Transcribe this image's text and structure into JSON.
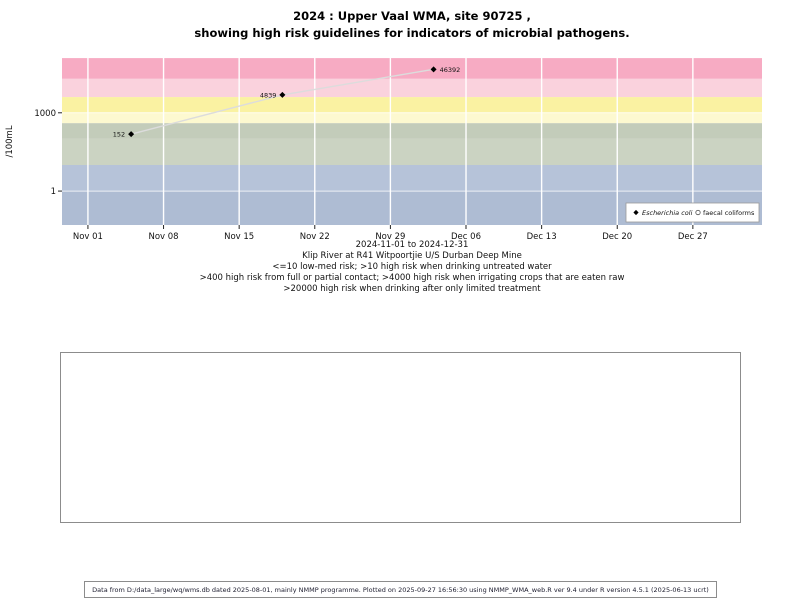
{
  "title": {
    "line1": "2024 : Upper Vaal WMA, site 90725 ,",
    "line2": "showing high risk guidelines for indicators of microbial pathogens."
  },
  "chart_data": {
    "type": "scatter",
    "title": "2024 : Upper Vaal WMA, site 90725 , showing high risk guidelines for indicators of microbial pathogens.",
    "ylabel": "/100mL",
    "xlabel": "2024-11-01 to 2024-12-31",
    "y_scale": "log10",
    "x_tick_labels": [
      "Nov 01",
      "Nov 08",
      "Nov 15",
      "Nov 22",
      "Nov 29",
      "Dec 06",
      "Dec 13",
      "Dec 20",
      "Dec 27"
    ],
    "x_tick_days": [
      0,
      7,
      14,
      21,
      28,
      35,
      42,
      49,
      56
    ],
    "x_domain_days": [
      -2.4,
      62.4
    ],
    "y_tick_labels": [
      "1000",
      "1"
    ],
    "y_tick_values": [
      1000,
      1
    ],
    "y_domain_log": [
      -1.3,
      5.1
    ],
    "grid": true,
    "risk_bands": [
      {
        "label": "gt-20000",
        "from": 20000,
        "to": 125000,
        "color": "#f7abc3"
      },
      {
        "label": "4000-20000",
        "from": 4000,
        "to": 20000,
        "color": "#fad2dd"
      },
      {
        "label": "1000-4000",
        "from": 1000,
        "to": 4000,
        "color": "#faf2a2"
      },
      {
        "label": "400-1000",
        "from": 400,
        "to": 1000,
        "color": "#fdf9d0"
      },
      {
        "label": "100-400",
        "from": 100,
        "to": 400,
        "color": "#c3ccba"
      },
      {
        "label": "10-100",
        "from": 10,
        "to": 100,
        "color": "#cbd3c2"
      },
      {
        "label": "1-10",
        "from": 1,
        "to": 10,
        "color": "#b6c3d9"
      },
      {
        "label": "lt-1",
        "from": 0.05,
        "to": 1,
        "color": "#aebcd3"
      }
    ],
    "series": [
      {
        "name": "Escherichia coli",
        "marker": "diamond",
        "points": [
          {
            "day": 4,
            "date": "2024-11-05",
            "value": 152,
            "label": "152",
            "label_side": "left"
          },
          {
            "day": 18,
            "date": "2024-11-19",
            "value": 4839,
            "label": "4839",
            "label_side": "left"
          },
          {
            "day": 32,
            "date": "2024-12-03",
            "value": 46392,
            "label": "46392",
            "label_side": "right"
          }
        ]
      },
      {
        "name": "faecal coliforms",
        "marker": "open-circle",
        "points": []
      }
    ],
    "legend": {
      "position": "bottom-right",
      "items": [
        {
          "marker": "diamond",
          "label": "Escherichia coli",
          "italic": true
        },
        {
          "marker": "open-circle",
          "label": "faecal coliforms",
          "italic": false
        }
      ]
    }
  },
  "caption": {
    "site": "Klip River at R41 Witpoortjie U/S Durban Deep Mine",
    "lines": [
      "<=10 low-med risk; >10 high risk when drinking untreated water",
      ">400 high risk from full or partial contact; >4000 high risk when irrigating crops that are eaten raw",
      ">20000 high risk when drinking after only limited treatment"
    ]
  },
  "footer": {
    "text": "Data from D:/data_large/wq/wms.db dated 2025-08-01, mainly NMMP programme. Plotted on 2025-09-27 16:56:30 using NMMP_WMA_web.R ver 9.4 under R version 4.5.1 (2025-06-13 ucrt)"
  }
}
